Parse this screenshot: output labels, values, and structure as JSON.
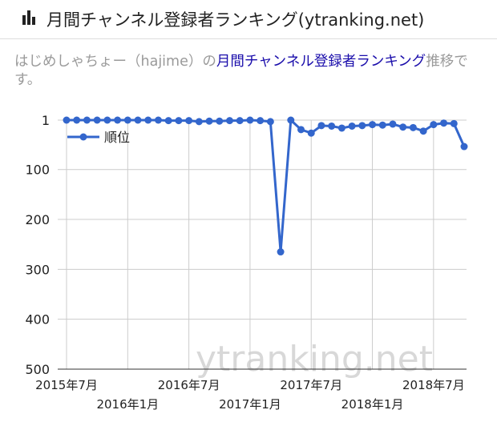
{
  "header": {
    "title": "月間チャンネル登録者ランキング(ytranking.net)"
  },
  "description": {
    "prefix": "はじめしゃちょー（hajime）の",
    "link": "月間チャンネル登録者ランキング",
    "suffix": "推移です。"
  },
  "chart_data": {
    "type": "line",
    "categories": [
      "2015年7月",
      null,
      null,
      null,
      null,
      null,
      "2016年1月",
      null,
      null,
      null,
      null,
      null,
      "2016年7月",
      null,
      null,
      null,
      null,
      null,
      "2017年1月",
      null,
      null,
      null,
      null,
      null,
      "2017年7月",
      null,
      null,
      null,
      null,
      null,
      "2018年1月",
      null,
      null,
      null,
      null,
      null,
      "2018年7月",
      null,
      null,
      null
    ],
    "series": [
      {
        "name": "順位",
        "color": "#3366cc",
        "values": [
          1,
          1,
          1,
          1,
          1,
          1,
          1,
          1,
          1,
          1,
          2,
          2,
          2,
          4,
          3,
          3,
          2,
          2,
          1,
          2,
          4,
          265,
          1,
          20,
          27,
          12,
          13,
          17,
          13,
          12,
          10,
          11,
          9,
          15,
          16,
          23,
          10,
          7,
          8,
          54
        ]
      }
    ],
    "ylim": [
      1,
      500
    ],
    "yticks": [
      1,
      100,
      200,
      300,
      400,
      500
    ],
    "grid": true,
    "legend": "top-left",
    "watermark": "ytranking.net"
  }
}
